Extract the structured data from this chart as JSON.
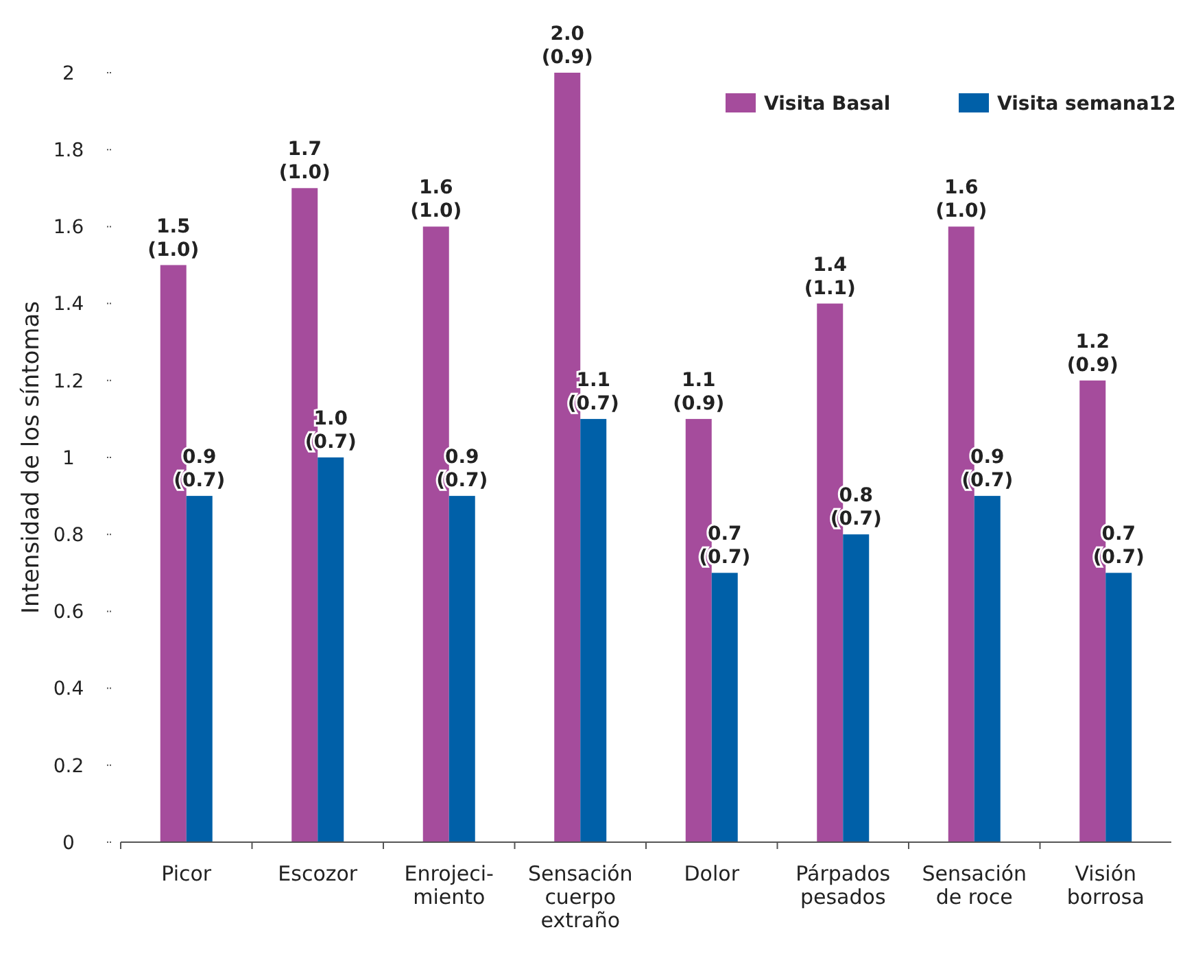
{
  "chart_data": {
    "type": "bar",
    "ylabel": "Intensidad de los síntomas",
    "categories": [
      "Picor",
      "Escozor",
      "Enrojeci-\nmiento",
      "Sensación\ncuerpo\nextraño",
      "Dolor",
      "Párpados\npesados",
      "Sensación\nde roce",
      "Visión\nborrosa"
    ],
    "series": [
      {
        "name": "Visita Basal",
        "color": "#a54c9c",
        "values": [
          1.5,
          1.7,
          1.6,
          2.0,
          1.1,
          1.4,
          1.6,
          1.2
        ],
        "value_labels": [
          "1.5\n(1.0)",
          "1.7\n(1.0)",
          "1.6\n(1.0)",
          "2.0\n(0.9)",
          "1.1\n(0.9)",
          "1.4\n(1.1)",
          "1.6\n(1.0)",
          "1.2\n(0.9)"
        ]
      },
      {
        "name": "Visita semana12",
        "color": "#0060a8",
        "values": [
          0.9,
          1.0,
          0.9,
          1.1,
          0.7,
          0.8,
          0.9,
          0.7
        ],
        "value_labels": [
          "0.9\n(0.7)",
          "1.0\n(0.7)",
          "0.9\n(0.7)",
          "1.1\n(0.7)",
          "0.7\n(0.7)",
          "0.8\n(0.7)",
          "0.9\n(0.7)",
          "0.7\n(0.7)"
        ]
      }
    ],
    "ylim": [
      0,
      2
    ],
    "yticks": [
      0,
      0.2,
      0.4,
      0.6,
      0.8,
      1,
      1.2,
      1.4,
      1.6,
      1.8,
      2
    ],
    "grid": false,
    "legend": "top right"
  }
}
